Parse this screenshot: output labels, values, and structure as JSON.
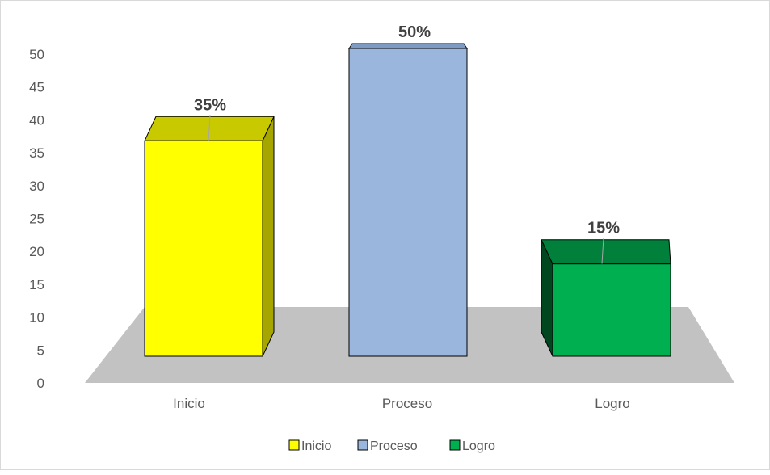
{
  "chart_data": {
    "type": "bar",
    "title": "",
    "xlabel": "",
    "ylabel": "",
    "categories": [
      "Inicio",
      "Proceso",
      "Logro"
    ],
    "values": [
      35,
      50,
      15
    ],
    "data_labels": [
      "35%",
      "50%",
      "15%"
    ],
    "yticks": [
      "0",
      "5",
      "10",
      "15",
      "20",
      "25",
      "30",
      "35",
      "40",
      "45",
      "50"
    ],
    "ylim": [
      0,
      50
    ],
    "grid": false,
    "three_d": true,
    "legend_position": "bottom",
    "legend": [
      "Inicio",
      "Proceso",
      "Logro"
    ],
    "colors": {
      "Inicio": {
        "front": "#ffff00",
        "side": "#a6a600",
        "top": "#c9c900"
      },
      "Proceso": {
        "front": "#9ab6dc",
        "side": "#6b86ac",
        "top": "#7d9ac2"
      },
      "Logro": {
        "front": "#00b050",
        "side": "#00471f",
        "top": "#00803a"
      },
      "floor": "#c2c2c2",
      "text": "#595959",
      "label": "#404040"
    }
  }
}
